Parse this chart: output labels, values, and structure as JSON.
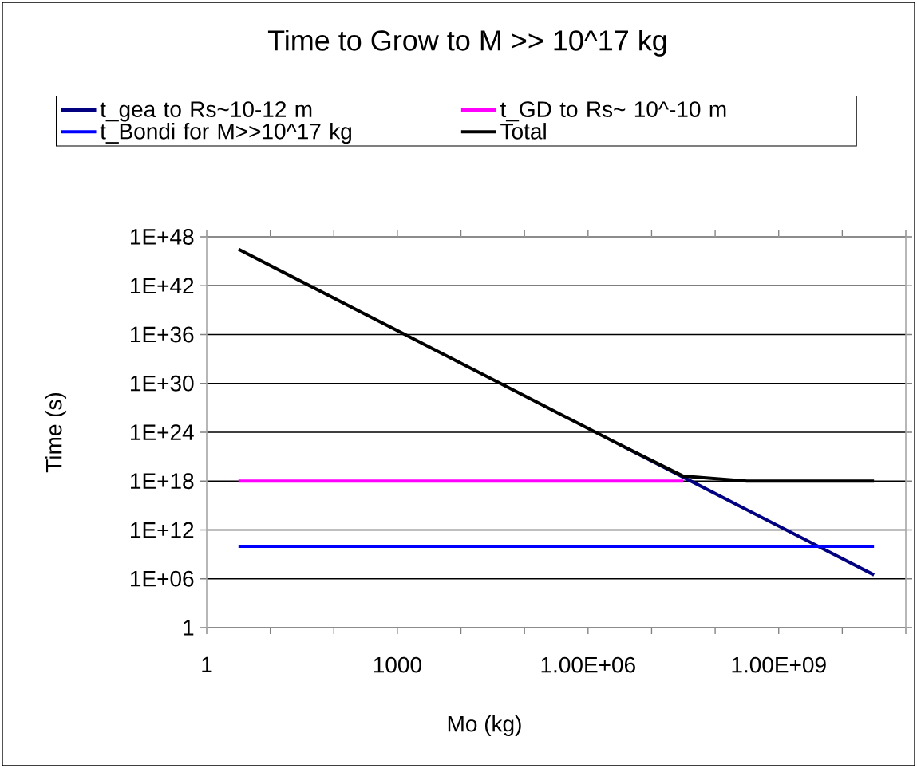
{
  "chart_data": {
    "type": "line",
    "title": "Time to Grow to M >> 10^17 kg",
    "xlabel": "Mo (kg)",
    "ylabel": "Time (s)",
    "x": [
      3.16,
      31.6,
      316,
      3160,
      31600,
      316000,
      3160000,
      31600000,
      316000000,
      3160000000,
      31600000000
    ],
    "series": [
      {
        "name": "t_gea to Rs~10-12 m",
        "color": "#000080",
        "values": [
          null,
          null,
          null,
          null,
          null,
          null,
          3e+22,
          3e+18,
          300000000000000.0,
          30000000000.0,
          3000000.0
        ]
      },
      {
        "name": "t_GD to Rs~ 10^-10 m",
        "color": "#ff00ff",
        "values": [
          1e+18,
          1e+18,
          1e+18,
          1e+18,
          1e+18,
          1e+18,
          1e+18,
          1e+18,
          null,
          null,
          null
        ]
      },
      {
        "name": "t_Bondi for M>>10^17 kg",
        "color": "#0000ff",
        "values": [
          10000000000.0,
          10000000000.0,
          10000000000.0,
          10000000000.0,
          10000000000.0,
          10000000000.0,
          10000000000.0,
          10000000000.0,
          10000000000.0,
          10000000000.0,
          10000000000.0
        ]
      },
      {
        "name": "Total",
        "color": "#000000",
        "values": [
          3e+46,
          3e+42,
          3e+38,
          3e+34,
          3e+30,
          3e+26,
          3e+22,
          4e+18,
          1e+18,
          1e+18,
          1e+18
        ]
      }
    ],
    "log": "xy",
    "xlim": [
      1,
      100000000000.0
    ],
    "ylim": [
      1,
      1e+48
    ],
    "xticks": [
      1,
      {
        "value": 10,
        "label": null
      },
      {
        "value": 100,
        "label": null
      },
      1000,
      {
        "value": 10000,
        "label": null
      },
      {
        "value": 100000,
        "label": null
      },
      {
        "value": 1000000,
        "label": "1.00E+06"
      },
      {
        "value": 10000000,
        "label": null
      },
      {
        "value": 100000000,
        "label": null
      },
      {
        "value": 1000000000,
        "label": "1.00E+09"
      },
      {
        "value": 10000000000,
        "label": null
      },
      {
        "value": 100000000000,
        "label": null
      }
    ],
    "yticks": [
      1,
      {
        "value": 1000000.0,
        "label": "1E+06"
      },
      {
        "value": 1000000000000.0,
        "label": "1E+12"
      },
      {
        "value": 1e+18,
        "label": "1E+18"
      },
      {
        "value": 1e+24,
        "label": "1E+24"
      },
      {
        "value": 1e+30,
        "label": "1E+30"
      },
      {
        "value": 1e+36,
        "label": "1E+36"
      },
      {
        "value": 1e+42,
        "label": "1E+42"
      },
      {
        "value": 1e+48,
        "label": "1E+48"
      }
    ],
    "grid": "y",
    "legend": "top",
    "marker": "none",
    "line_style": "solid"
  }
}
